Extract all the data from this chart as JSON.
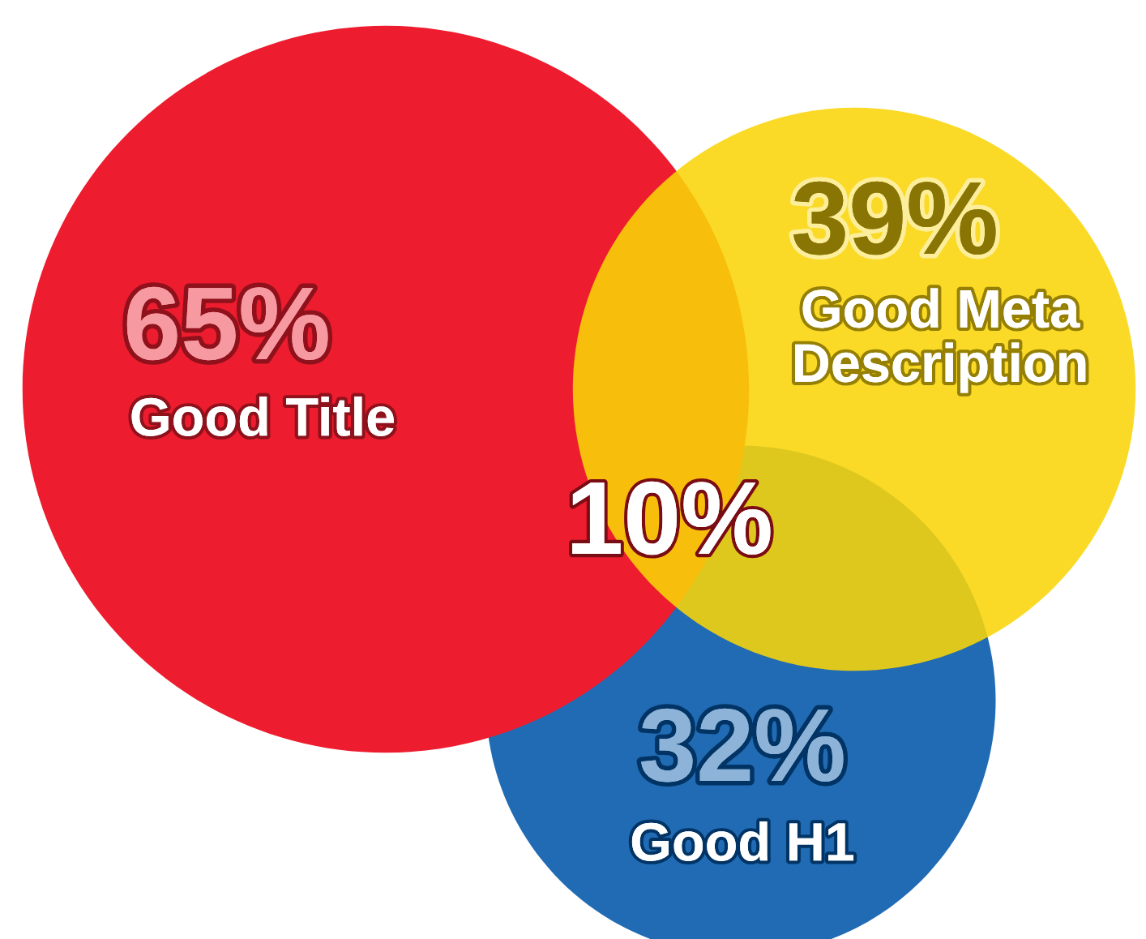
{
  "chart_data": {
    "type": "other",
    "categories": [
      "Good Title",
      "Good Meta Description",
      "Good H1"
    ],
    "values": [
      65,
      39,
      32
    ],
    "colors": [
      "#ed1c2e",
      "#f9d508",
      "#0157a8"
    ],
    "value_labels": [
      "65%",
      "39%",
      "32%"
    ],
    "annotations": [
      "10%"
    ]
  }
}
